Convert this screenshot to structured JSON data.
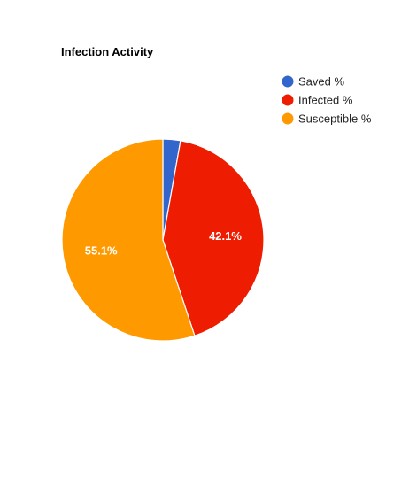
{
  "chart_data": {
    "type": "pie",
    "title": "Infection Activity",
    "categories": [
      "Saved %",
      "Infected %",
      "Susceptible %"
    ],
    "values": [
      2.8,
      42.1,
      55.1
    ],
    "slice_labels": [
      "",
      "42.1%",
      "55.1%"
    ],
    "colors": [
      "#3366cc",
      "#ee1c00",
      "#ff9900"
    ],
    "legend_position": "top-right",
    "start_angle_deg": 0,
    "direction": "clockwise"
  }
}
